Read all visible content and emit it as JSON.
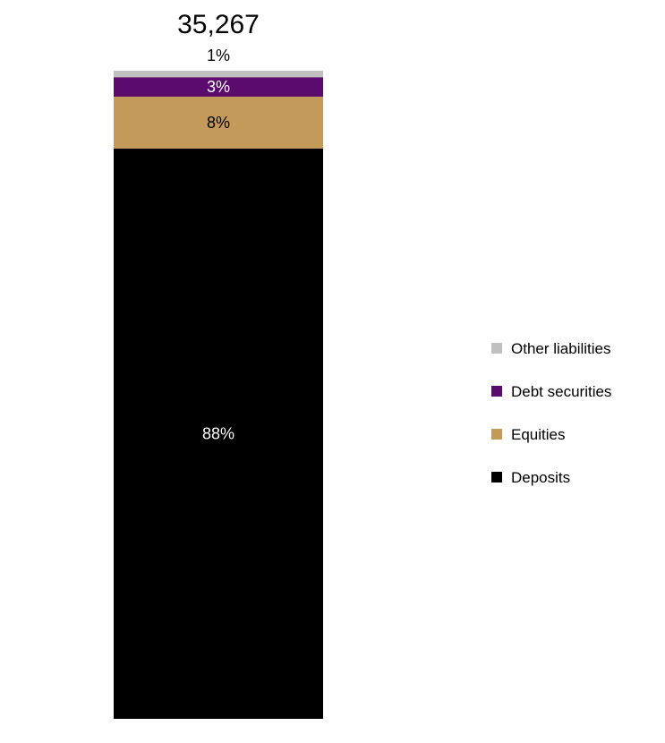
{
  "chart_data": {
    "type": "bar",
    "stacked": true,
    "total_label": "35,267",
    "segments": [
      {
        "name": "Deposits",
        "value": 88,
        "label": "88%",
        "color": "#000000",
        "label_color": "#ffffff"
      },
      {
        "name": "Equities",
        "value": 8,
        "label": "8%",
        "color": "#c49a5a",
        "label_color": "#000000"
      },
      {
        "name": "Debt securities",
        "value": 3,
        "label": "3%",
        "color": "#5b0a6e",
        "label_color": "#ffffff"
      },
      {
        "name": "Other liabilities",
        "value": 1,
        "label": "1%",
        "color": "#c0c0c0",
        "label_color": "#000000"
      }
    ],
    "legend": {
      "position": "right",
      "entries": [
        "Other liabilities",
        "Debt securities",
        "Equities",
        "Deposits"
      ]
    },
    "grid": false,
    "axes_visible": false
  }
}
